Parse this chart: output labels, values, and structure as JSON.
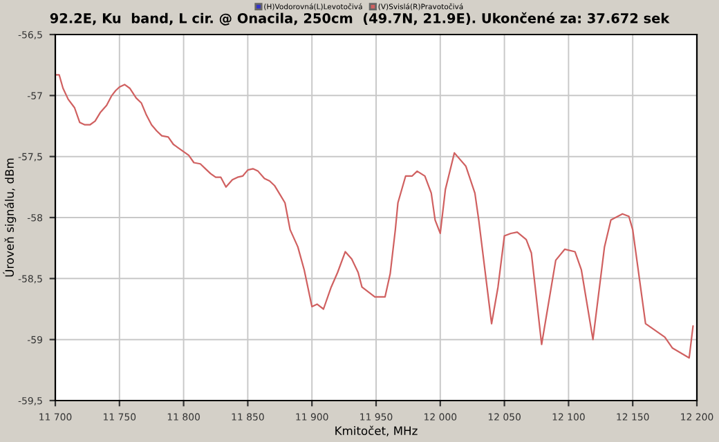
{
  "chart_data": {
    "type": "line",
    "title": "92.2E, Ku  band, L cir. @ Onacila, 250cm  (49.7N, 21.9E). Ukončené za: 37.672 sek",
    "xlabel": "Kmitočet, MHz",
    "ylabel": "Úroveň signálu, dBm",
    "x": [
      11700,
      11703,
      11706,
      11710,
      11715,
      11719,
      11723,
      11727,
      11731,
      11735,
      11740,
      11744,
      11747,
      11750,
      11754,
      11758,
      11763,
      11767,
      11771,
      11775,
      11779,
      11783,
      11788,
      11792,
      11796,
      11800,
      11804,
      11808,
      11813,
      11817,
      11821,
      11825,
      11829,
      11833,
      11838,
      11842,
      11846,
      11850,
      11854,
      11858,
      11863,
      11867,
      11871,
      11875,
      11879,
      11883,
      11889,
      11894,
      11900,
      11904,
      11909,
      11915,
      11920,
      11926,
      11931,
      11936,
      11939,
      11949,
      11957,
      11961,
      11965,
      11967,
      11973,
      11978,
      11982,
      11988,
      11993,
      11996,
      12000,
      12004,
      12011,
      12020,
      12027,
      12030,
      12040,
      12045,
      12050,
      12055,
      12060,
      12067,
      12071,
      12079,
      12090,
      12097,
      12105,
      12110,
      12119,
      12128,
      12133,
      12142,
      12147,
      12150,
      12160,
      12175,
      12181,
      12194,
      12197
    ],
    "series": [
      {
        "name": "(H)Vodorovná(L)Levotočivá",
        "color": "#3333cc",
        "values": [
          null,
          null,
          null,
          null,
          null,
          null,
          null,
          null,
          null,
          null,
          null,
          null,
          null,
          null,
          null,
          null,
          null,
          null,
          null,
          null,
          null,
          null,
          null,
          null,
          null,
          null,
          null,
          null,
          null,
          null,
          null,
          null,
          null,
          null,
          null,
          null,
          null,
          null,
          null,
          null,
          null,
          null,
          null,
          null,
          null,
          null,
          null,
          null,
          null,
          null,
          null,
          null,
          null,
          null,
          null,
          null,
          null,
          null,
          null,
          null,
          null,
          null,
          null,
          null,
          null,
          null,
          null,
          null,
          null,
          null,
          null,
          null,
          null,
          null,
          null,
          null,
          null,
          null,
          null,
          null,
          null,
          null,
          null,
          null,
          null,
          null,
          null,
          null,
          null,
          null,
          null,
          null,
          null,
          null,
          null,
          null,
          null
        ]
      },
      {
        "name": "(V)Svislá(R)Pravotočivá",
        "color": "#d06060",
        "values": [
          -56.83,
          -56.83,
          -56.94,
          -57.03,
          -57.1,
          -57.22,
          -57.24,
          -57.24,
          -57.21,
          -57.14,
          -57.08,
          -57.0,
          -56.96,
          -56.93,
          -56.91,
          -56.94,
          -57.02,
          -57.06,
          -57.16,
          -57.24,
          -57.29,
          -57.33,
          -57.34,
          -57.4,
          -57.43,
          -57.46,
          -57.49,
          -57.55,
          -57.56,
          -57.6,
          -57.64,
          -57.67,
          -57.67,
          -57.75,
          -57.69,
          -57.67,
          -57.66,
          -57.61,
          -57.6,
          -57.62,
          -57.68,
          -57.7,
          -57.74,
          -57.81,
          -57.88,
          -58.1,
          -58.24,
          -58.43,
          -58.73,
          -58.71,
          -58.75,
          -58.57,
          -58.45,
          -58.28,
          -58.34,
          -58.45,
          -58.57,
          -58.65,
          -58.65,
          -58.46,
          -58.1,
          -57.88,
          -57.66,
          -57.66,
          -57.62,
          -57.66,
          -57.8,
          -58.02,
          -58.13,
          -57.77,
          -57.47,
          -57.58,
          -57.8,
          -58.02,
          -58.87,
          -58.57,
          -58.15,
          -58.13,
          -58.12,
          -58.18,
          -58.29,
          -59.04,
          -58.35,
          -58.26,
          -58.28,
          -58.43,
          -59.0,
          -58.24,
          -58.02,
          -57.97,
          -57.99,
          -58.1,
          -58.87,
          -58.98,
          -59.07,
          -59.15,
          -58.89
        ]
      }
    ],
    "xlim": [
      11700,
      12200
    ],
    "ylim": [
      -59.5,
      -56.5
    ],
    "xticks": [
      {
        "value": 11700,
        "label": "11 700"
      },
      {
        "value": 11750,
        "label": "11 750"
      },
      {
        "value": 11800,
        "label": "11 800"
      },
      {
        "value": 11850,
        "label": "11 850"
      },
      {
        "value": 11900,
        "label": "11 900"
      },
      {
        "value": 11950,
        "label": "11 950"
      },
      {
        "value": 12000,
        "label": "12 000"
      },
      {
        "value": 12050,
        "label": "12 050"
      },
      {
        "value": 12100,
        "label": "12 100"
      },
      {
        "value": 12150,
        "label": "12 150"
      },
      {
        "value": 12200,
        "label": "12 200"
      }
    ],
    "yticks": [
      {
        "value": -59.5,
        "label": "-59,5"
      },
      {
        "value": -59,
        "label": "-59"
      },
      {
        "value": -58.5,
        "label": "-58,5"
      },
      {
        "value": -58,
        "label": "-58"
      },
      {
        "value": -57.5,
        "label": "-57,5"
      },
      {
        "value": -57,
        "label": "-57"
      },
      {
        "value": -56.5,
        "label": "-56,5"
      }
    ],
    "grid": true,
    "legend": "top",
    "marker": "none",
    "line_style": "solid"
  }
}
